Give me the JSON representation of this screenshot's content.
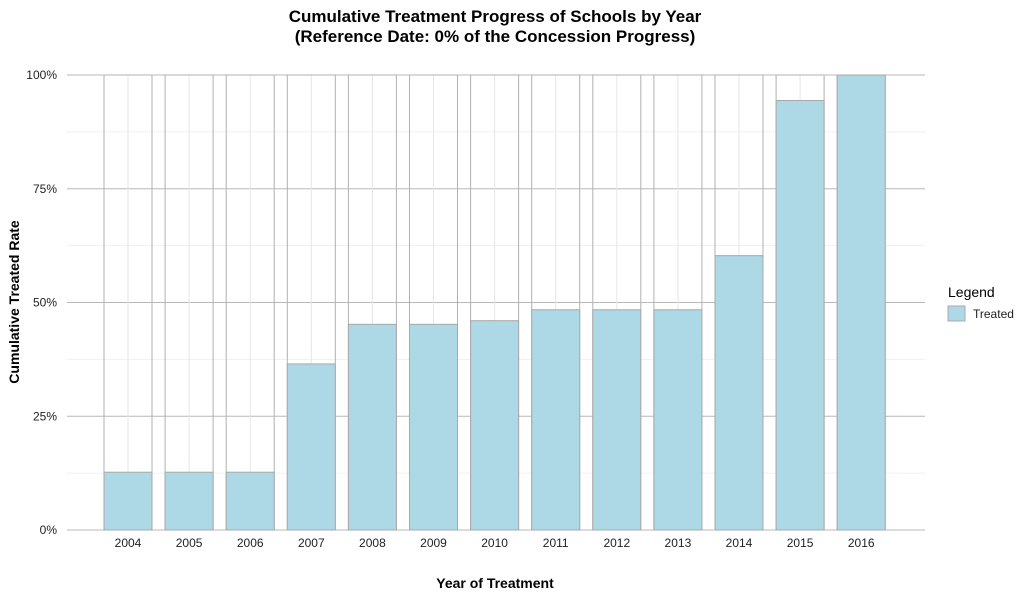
{
  "chart_data": {
    "type": "bar",
    "title": "Cumulative Treatment Progress of Schools by Year",
    "subtitle": "(Reference Date: 0% of the Concession Progress)",
    "xlabel": "Year of Treatment",
    "ylabel": "Cumulative Treated Rate",
    "categories": [
      "2004",
      "2005",
      "2006",
      "2007",
      "2008",
      "2009",
      "2010",
      "2011",
      "2012",
      "2013",
      "2014",
      "2015",
      "2016"
    ],
    "series": [
      {
        "name": "Treated",
        "color": "#add8e6",
        "values": [
          0.127,
          0.127,
          0.127,
          0.365,
          0.452,
          0.452,
          0.46,
          0.484,
          0.484,
          0.484,
          0.603,
          0.944,
          1.0
        ]
      }
    ],
    "background_bar_value": 1.0,
    "ylim": [
      0,
      1
    ],
    "yticks": [
      0,
      0.25,
      0.5,
      0.75,
      1.0
    ],
    "ytick_labels": [
      "0%",
      "25%",
      "50%",
      "75%",
      "100%"
    ],
    "grid": true,
    "legend": {
      "title": "Legend",
      "position": "right"
    }
  }
}
